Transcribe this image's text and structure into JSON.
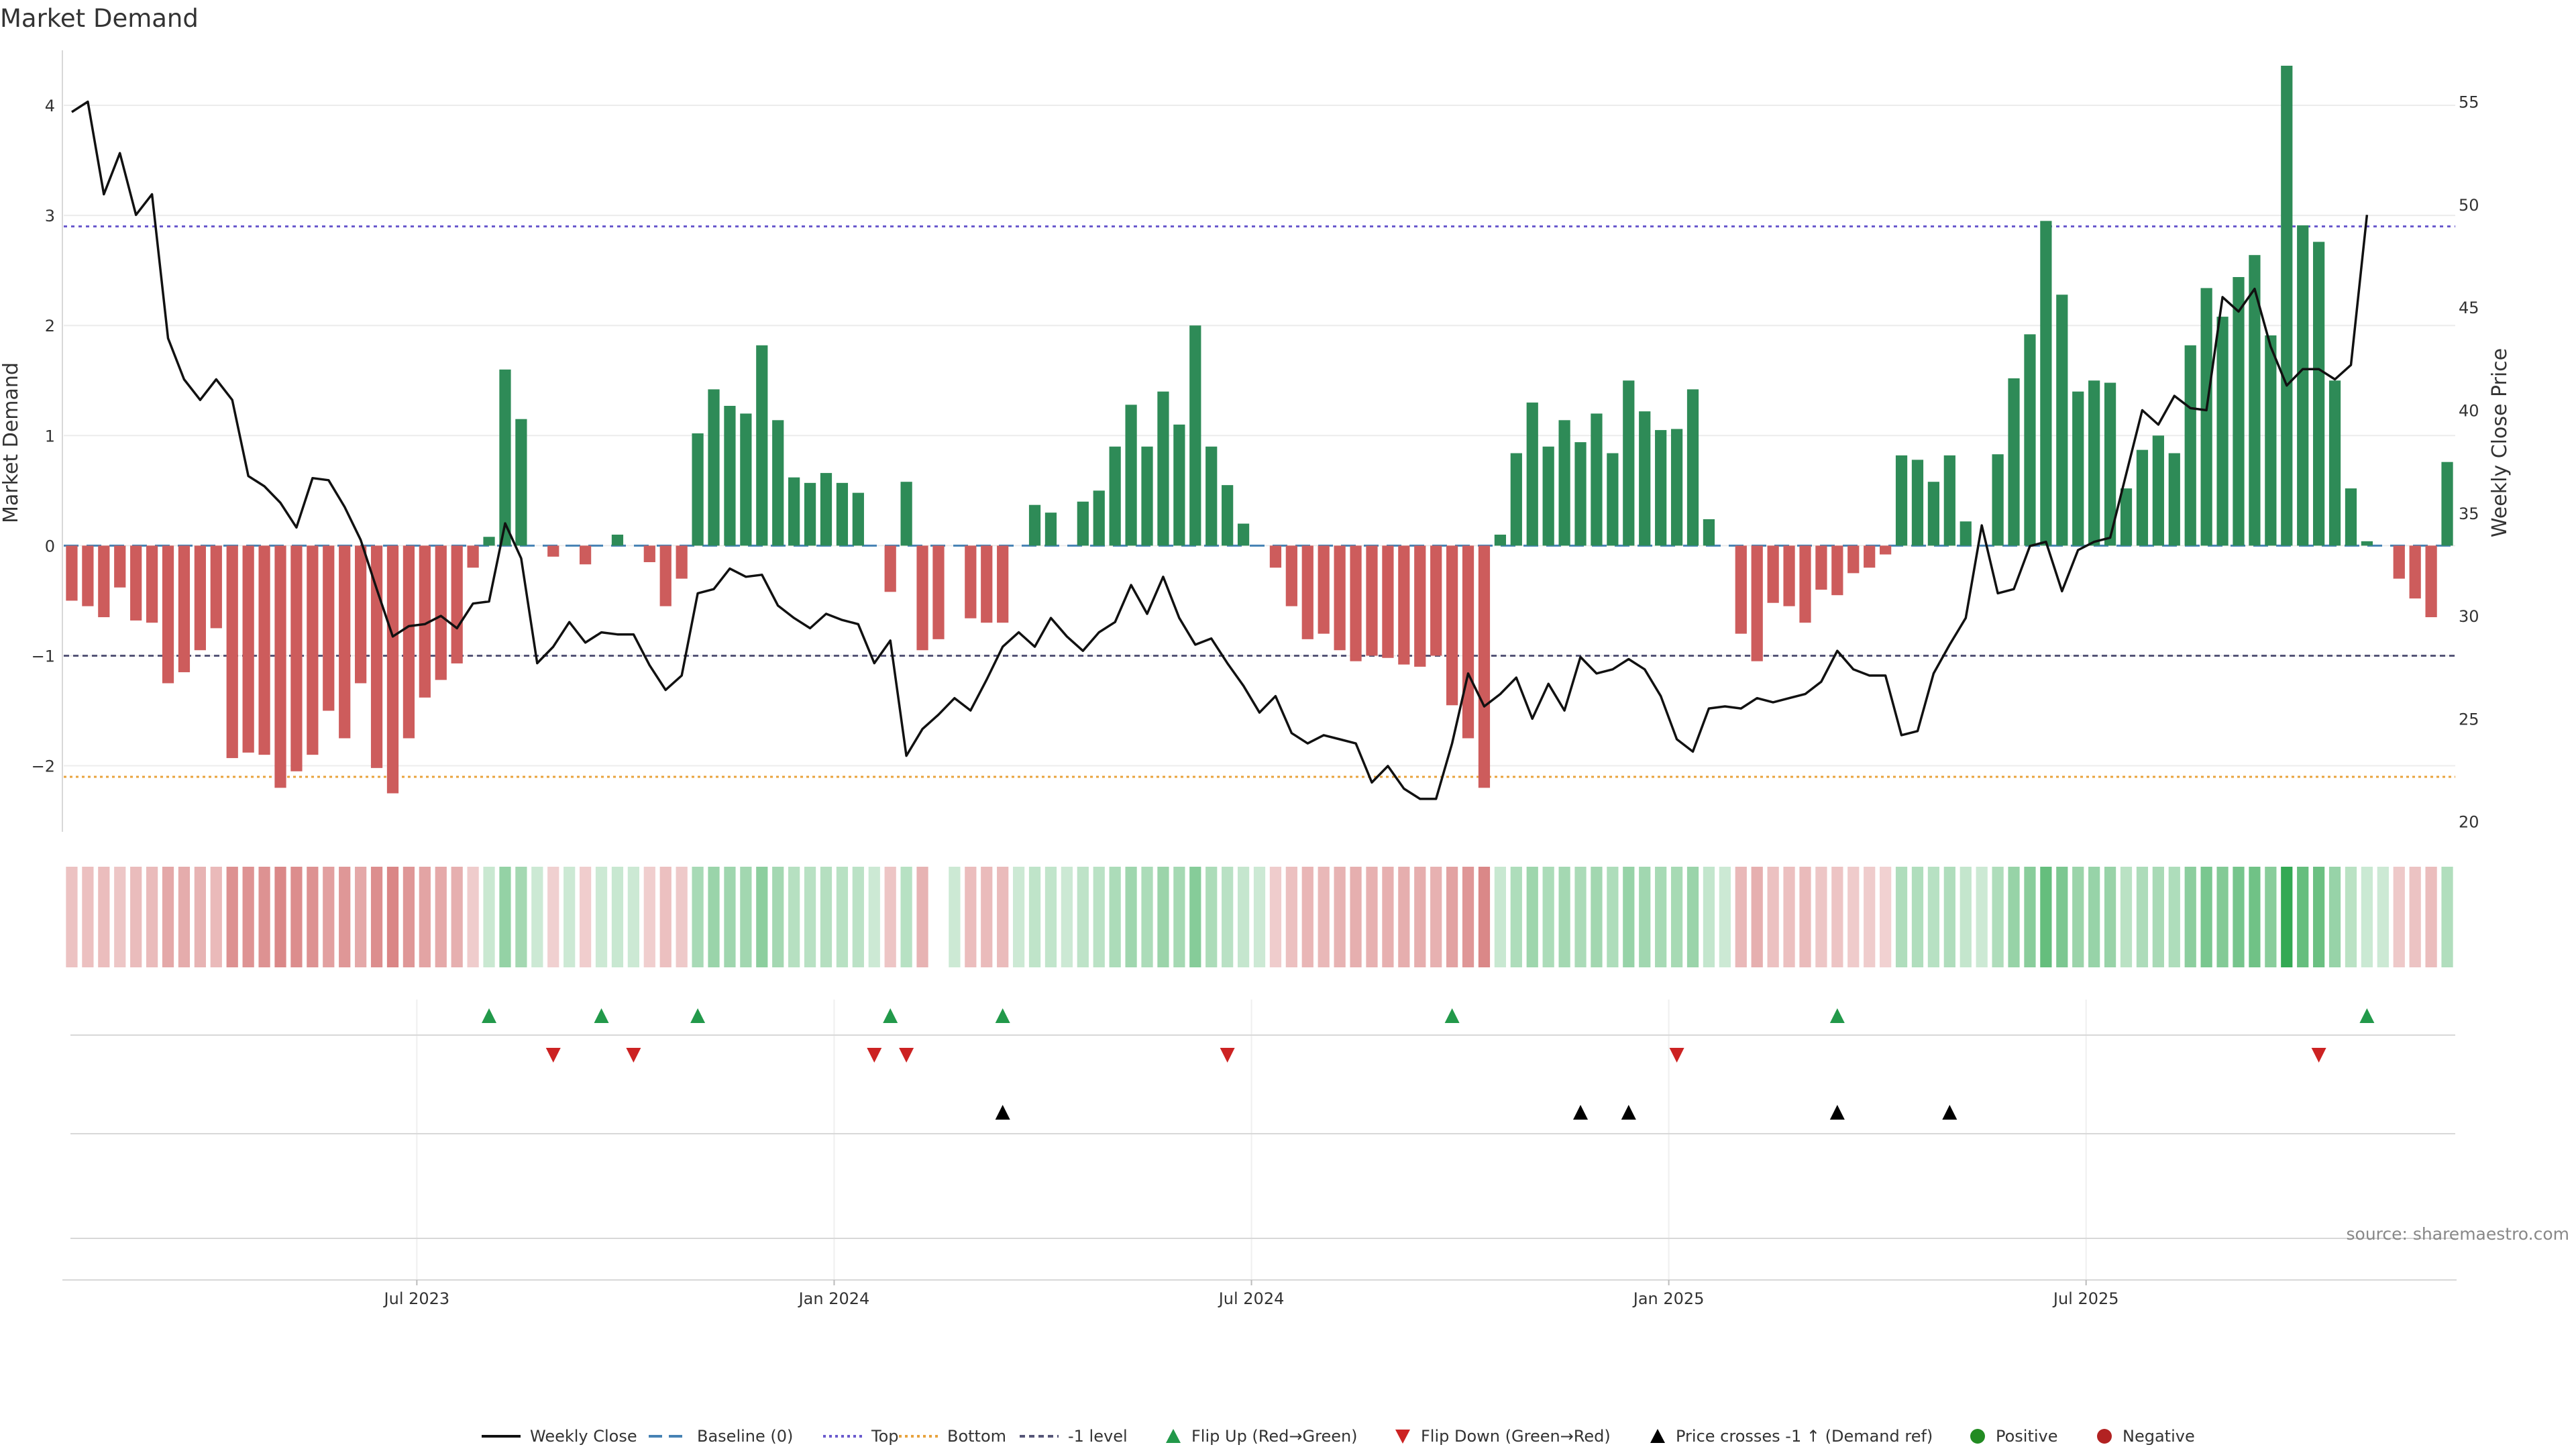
{
  "chart_data": {
    "type": "bar",
    "title": "Market Demand",
    "ylabel_left": "Market Demand",
    "ylabel_right": "Weekly Close Price",
    "source": "source: sharemaestro.com",
    "ylim_left": [
      -2.6,
      4.5
    ],
    "ylim_right": [
      19.5,
      57.5
    ],
    "left_ticks": [
      {
        "v": -2,
        "label": "−2"
      },
      {
        "v": -1,
        "label": "−1"
      },
      {
        "v": 0,
        "label": "0"
      },
      {
        "v": 1,
        "label": "1"
      },
      {
        "v": 2,
        "label": "2"
      },
      {
        "v": 3,
        "label": "3"
      },
      {
        "v": 4,
        "label": "4"
      }
    ],
    "right_ticks": [
      {
        "v": 20,
        "label": "20"
      },
      {
        "v": 25,
        "label": "25"
      },
      {
        "v": 30,
        "label": "30"
      },
      {
        "v": 35,
        "label": "35"
      },
      {
        "v": 40,
        "label": "40"
      },
      {
        "v": 45,
        "label": "45"
      },
      {
        "v": 50,
        "label": "50"
      },
      {
        "v": 55,
        "label": "55"
      }
    ],
    "x_ticks": [
      {
        "week": 22,
        "label": "Jul 2023"
      },
      {
        "week": 48,
        "label": "Jan 2024"
      },
      {
        "week": 74,
        "label": "Jul 2024"
      },
      {
        "week": 100,
        "label": "Jan 2025"
      },
      {
        "week": 126,
        "label": "Jul 2025"
      }
    ],
    "reference_lines": {
      "top": 2.9,
      "bottom": -2.1,
      "minus_one": -1,
      "baseline": 0
    },
    "colors": {
      "positive": "#2e8b57",
      "negative": "#cd5c5c",
      "price": "#111111",
      "top": "#6a5acd",
      "bottom": "#e8a33d",
      "minus_one": "#555577",
      "baseline": "#4682b4",
      "flip_up": "#22994a",
      "flip_down": "#cc2222",
      "cross": "#000000",
      "positive_dot": "#228b22",
      "negative_dot": "#b22222"
    },
    "demand": [
      -0.5,
      -0.55,
      -0.65,
      -0.38,
      -0.68,
      -0.7,
      -1.25,
      -1.15,
      -0.95,
      -0.75,
      -1.93,
      -1.88,
      -1.9,
      -2.2,
      -2.05,
      -1.9,
      -1.5,
      -1.75,
      -1.25,
      -2.02,
      -2.25,
      -1.75,
      -1.38,
      -1.22,
      -1.07,
      -0.2,
      0.08,
      1.6,
      1.15,
      0,
      -0.1,
      0,
      -0.17,
      0,
      0.1,
      0,
      -0.15,
      -0.55,
      -0.3,
      1.02,
      1.42,
      1.27,
      1.2,
      1.82,
      1.14,
      0.62,
      0.57,
      0.66,
      0.57,
      0.48,
      0,
      -0.42,
      0.58,
      -0.95,
      -0.85,
      0,
      -0.66,
      -0.7,
      -0.7,
      0,
      0.37,
      0.3,
      0,
      0.4,
      0.5,
      0.9,
      1.28,
      0.9,
      1.4,
      1.1,
      2.0,
      0.9,
      0.55,
      0.2,
      0,
      -0.2,
      -0.55,
      -0.85,
      -0.8,
      -0.95,
      -1.05,
      -1.0,
      -1.02,
      -1.08,
      -1.1,
      -1.0,
      -1.45,
      -1.75,
      -2.2,
      0.1,
      0.84,
      1.3,
      0.9,
      1.14,
      0.94,
      1.2,
      0.84,
      1.5,
      1.22,
      1.05,
      1.06,
      1.42,
      0.24,
      0,
      -0.8,
      -1.05,
      -0.52,
      -0.55,
      -0.7,
      -0.4,
      -0.45,
      -0.25,
      -0.2,
      -0.08,
      0.82,
      0.78,
      0.58,
      0.82,
      0.22,
      0,
      0.83,
      1.52,
      1.92,
      2.95,
      2.28,
      1.4,
      1.5,
      1.48,
      0.52,
      0.87,
      1.0,
      0.84,
      1.82,
      2.34,
      2.08,
      2.44,
      2.64,
      1.91,
      4.36,
      2.91,
      2.76,
      1.5,
      0.52,
      0.04,
      0,
      -0.3,
      -0.48,
      -0.65,
      0.76
    ],
    "price": [
      54.5,
      55.0,
      50.5,
      52.5,
      49.5,
      50.5,
      43.5,
      41.5,
      40.5,
      41.5,
      40.5,
      36.8,
      36.3,
      35.5,
      34.3,
      36.7,
      36.6,
      35.3,
      33.7,
      31.3,
      29.0,
      29.5,
      29.6,
      30.0,
      29.4,
      30.6,
      30.7,
      34.5,
      32.8,
      27.7,
      28.5,
      29.7,
      28.7,
      29.2,
      29.1,
      29.1,
      27.6,
      26.4,
      27.1,
      31.1,
      31.3,
      32.3,
      31.9,
      32.0,
      30.5,
      29.9,
      29.4,
      30.1,
      29.8,
      29.6,
      27.7,
      28.8,
      23.2,
      24.5,
      25.2,
      26.0,
      25.4,
      26.9,
      28.5,
      29.2,
      28.5,
      29.9,
      29.0,
      28.3,
      29.2,
      29.7,
      31.5,
      30.1,
      31.9,
      29.9,
      28.6,
      28.9,
      27.7,
      26.6,
      25.3,
      26.1,
      24.3,
      23.8,
      24.2,
      24.0,
      23.8,
      21.9,
      22.7,
      21.6,
      21.1,
      21.1,
      23.8,
      27.2,
      25.6,
      26.2,
      27.0,
      25.0,
      26.7,
      25.4,
      28.0,
      27.2,
      27.4,
      27.9,
      27.4,
      26.1,
      24.0,
      23.4,
      25.5,
      25.6,
      25.5,
      26.0,
      25.8,
      26.0,
      26.2,
      26.8,
      28.3,
      27.4,
      27.1,
      27.1,
      24.2,
      24.4,
      27.2,
      28.6,
      29.9,
      34.4,
      31.1,
      31.3,
      33.4,
      33.6,
      31.2,
      33.2,
      33.6,
      33.8,
      36.9,
      40.0,
      39.3,
      40.7,
      40.1,
      40.0,
      45.5,
      44.8,
      45.9,
      43.1,
      41.2,
      42.0,
      42.0,
      41.5,
      42.2,
      49.5
    ],
    "flip_up_weeks": [
      26,
      33,
      39,
      51,
      58,
      86,
      110,
      143
    ],
    "flip_down_weeks": [
      30,
      35,
      50,
      52,
      72,
      100,
      140
    ],
    "cross_weeks": [
      58,
      94,
      97,
      110,
      117
    ],
    "strip_gap_weeks": [
      54
    ],
    "legend": [
      {
        "kind": "line",
        "label": "Weekly Close"
      },
      {
        "kind": "dash",
        "label": "Baseline (0)"
      },
      {
        "kind": "dot",
        "label": "Top"
      },
      {
        "kind": "dotb",
        "label": "Bottom"
      },
      {
        "kind": "dash1",
        "label": "-1 level"
      },
      {
        "kind": "up",
        "label": "Flip Up (Red→Green)"
      },
      {
        "kind": "down",
        "label": "Flip Down (Green→Red)"
      },
      {
        "kind": "cross",
        "label": "Price crosses -1 ↑ (Demand ref)"
      },
      {
        "kind": "pos",
        "label": "Positive"
      },
      {
        "kind": "neg",
        "label": "Negative"
      }
    ]
  }
}
